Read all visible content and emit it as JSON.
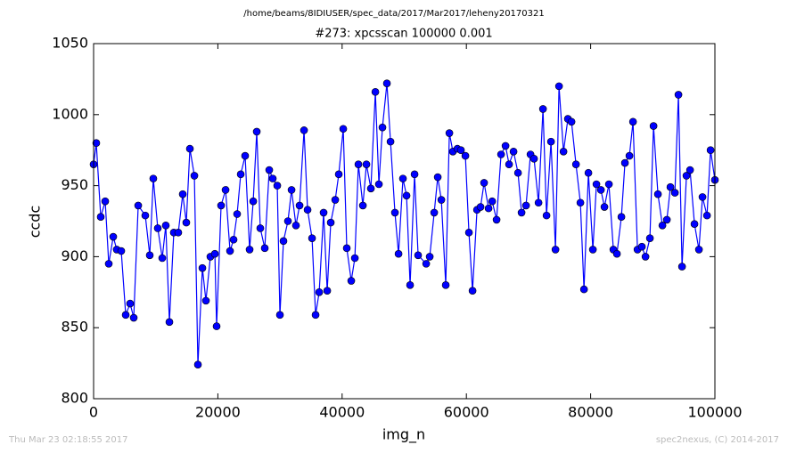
{
  "chart_data": {
    "type": "line",
    "suptitle": "/home/beams/8IDIUSER/spec_data/2017/Mar2017/leheny20170321",
    "title": "#273: xpcsscan 100000 0.001",
    "xlabel": "img_n",
    "ylabel": "ccdc",
    "footer_left": "Thu Mar 23 02:18:55 2017",
    "footer_right": "spec2nexus, (C) 2014-2017",
    "xlim": [
      0,
      100000
    ],
    "ylim": [
      800,
      1050
    ],
    "xticks": [
      0,
      20000,
      40000,
      60000,
      80000,
      100000
    ],
    "yticks": [
      800,
      850,
      900,
      950,
      1000,
      1050
    ],
    "grid": false,
    "series": [
      {
        "name": "ccdc",
        "color": "#0000ff",
        "x": [
          0,
          430,
          1150,
          1870,
          2440,
          3160,
          3730,
          4450,
          5170,
          5880,
          6460,
          7180,
          8320,
          9040,
          9610,
          10330,
          11050,
          11620,
          12200,
          12910,
          13630,
          14350,
          14920,
          15500,
          16220,
          16790,
          17510,
          18080,
          18800,
          19520,
          19800,
          20520,
          21240,
          21960,
          22530,
          23100,
          23680,
          24390,
          25110,
          25690,
          26260,
          26830,
          27550,
          28270,
          28840,
          29560,
          29990,
          30560,
          31280,
          31860,
          32570,
          33150,
          33870,
          34440,
          35160,
          35730,
          36310,
          37020,
          37600,
          38170,
          38890,
          39460,
          40180,
          40750,
          41470,
          42050,
          42620,
          43340,
          43910,
          44630,
          45350,
          45920,
          46490,
          47210,
          47790,
          48500,
          49080,
          49790,
          50370,
          50940,
          51660,
          52230,
          53530,
          54100,
          54820,
          55390,
          55970,
          56680,
          57260,
          57830,
          58550,
          59120,
          59840,
          60410,
          60990,
          61710,
          62280,
          62850,
          63570,
          64150,
          64860,
          65580,
          66300,
          66870,
          67590,
          68310,
          68880,
          69600,
          70320,
          70890,
          71610,
          72330,
          72900,
          73620,
          74340,
          74910,
          75630,
          76340,
          76920,
          77640,
          78350,
          78930,
          79640,
          80360,
          80930,
          81650,
          82220,
          82940,
          83660,
          84230,
          84950,
          85520,
          86240,
          86820,
          87540,
          88250,
          88830,
          89540,
          90120,
          90830,
          91550,
          92270,
          92840,
          93560,
          94130,
          94710,
          95420,
          96000,
          96710,
          97430,
          98000,
          98730,
          99300,
          100000
        ],
        "values": [
          965,
          980,
          928,
          939,
          895,
          914,
          905,
          904,
          859,
          867,
          857,
          936,
          929,
          901,
          955,
          920,
          899,
          922,
          854,
          917,
          917,
          944,
          924,
          976,
          957,
          824,
          892,
          869,
          900,
          902,
          851,
          936,
          947,
          904,
          912,
          930,
          958,
          971,
          905,
          939,
          988,
          920,
          906,
          961,
          955,
          950,
          859,
          911,
          925,
          947,
          922,
          936,
          989,
          933,
          913,
          859,
          875,
          931,
          876,
          924,
          940,
          958,
          990,
          906,
          883,
          899,
          965,
          936,
          965,
          948,
          1016,
          951,
          991,
          1022,
          981,
          931,
          902,
          955,
          943,
          880,
          958,
          901,
          895,
          900,
          931,
          956,
          940,
          880,
          987,
          974,
          976,
          975,
          971,
          917,
          876,
          933,
          935,
          952,
          934,
          939,
          926,
          972,
          978,
          965,
          974,
          959,
          931,
          936,
          972,
          969,
          938,
          1004,
          929,
          981,
          905,
          1020,
          974,
          997,
          995,
          965,
          938,
          877,
          959,
          905,
          951,
          947,
          935,
          951,
          905,
          902,
          928,
          966,
          971,
          995,
          905,
          907,
          900,
          913,
          992,
          944,
          922,
          926,
          949,
          945,
          1014,
          893,
          957,
          961,
          923,
          905,
          942,
          929,
          975,
          954
        ]
      }
    ]
  }
}
